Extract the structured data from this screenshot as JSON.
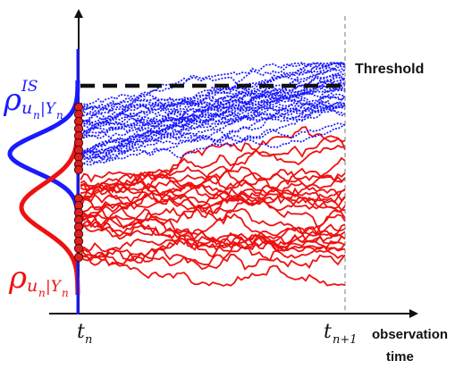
{
  "labels": {
    "threshold": "Threshold",
    "tn": "t",
    "tn_sub": "n",
    "tn1": "t",
    "tn1_sub": "n+1",
    "obs_line1": "observation",
    "obs_line2": "time",
    "rho_is_base": "ρ",
    "rho_is_sup": "IS",
    "rho_is_sub": "u",
    "rho_is_sub2": "n",
    "rho_is_bar": "|Υ",
    "rho_is_sub3": "n",
    "rho_base": "ρ",
    "rho_sub": "u",
    "rho_sub2": "n",
    "rho_bar": "|Υ",
    "rho_sub3": "n"
  },
  "colors": {
    "blue": "#1a1aff",
    "red": "#ee1111",
    "axis": "#111111",
    "dot_fill": "#dd2222",
    "dot_stroke": "#550000",
    "dash": "#111111",
    "guide": "#777777"
  },
  "diagram": {
    "blue_paths": 34,
    "red_paths": 26,
    "seed": 17
  }
}
